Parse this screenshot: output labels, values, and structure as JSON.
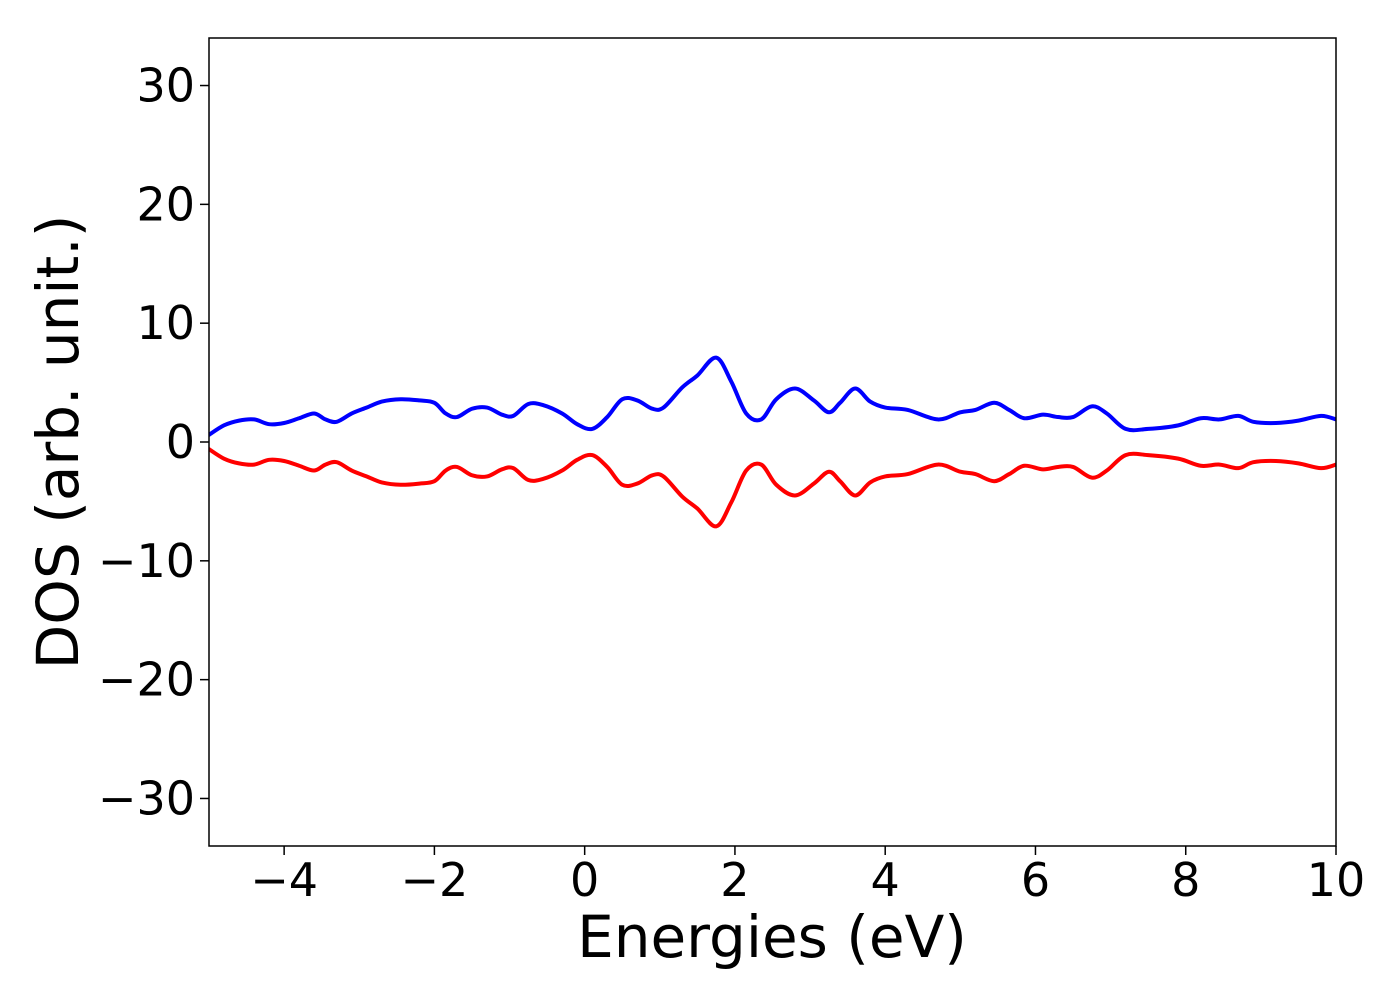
{
  "chart_data": {
    "type": "line",
    "title": "",
    "xlabel": "Energies (eV)",
    "ylabel": "DOS (arb. unit.)",
    "xlim": [
      -5,
      10
    ],
    "ylim": [
      -34,
      34
    ],
    "x_ticks": [
      -4,
      -2,
      0,
      2,
      4,
      6,
      8,
      10
    ],
    "y_ticks": [
      -30,
      -20,
      -10,
      0,
      10,
      20,
      30
    ],
    "x_tick_labels": [
      "−4",
      "−2",
      "0",
      "2",
      "4",
      "6",
      "8",
      "10"
    ],
    "y_tick_labels": [
      "−30",
      "−20",
      "−10",
      "0",
      "10",
      "20",
      "30"
    ],
    "grid": false,
    "series": [
      {
        "color": "#0000ff",
        "points": [
          [
            -5.0,
            0.6
          ],
          [
            -4.8,
            1.4
          ],
          [
            -4.6,
            1.8
          ],
          [
            -4.4,
            1.9
          ],
          [
            -4.2,
            1.5
          ],
          [
            -4.0,
            1.6
          ],
          [
            -3.8,
            2.0
          ],
          [
            -3.6,
            2.4
          ],
          [
            -3.45,
            1.9
          ],
          [
            -3.3,
            1.7
          ],
          [
            -3.1,
            2.4
          ],
          [
            -2.9,
            2.9
          ],
          [
            -2.7,
            3.4
          ],
          [
            -2.45,
            3.6
          ],
          [
            -2.2,
            3.5
          ],
          [
            -2.0,
            3.3
          ],
          [
            -1.85,
            2.4
          ],
          [
            -1.7,
            2.1
          ],
          [
            -1.5,
            2.8
          ],
          [
            -1.3,
            2.9
          ],
          [
            -1.1,
            2.3
          ],
          [
            -0.95,
            2.2
          ],
          [
            -0.75,
            3.2
          ],
          [
            -0.55,
            3.1
          ],
          [
            -0.3,
            2.4
          ],
          [
            -0.1,
            1.5
          ],
          [
            0.1,
            1.1
          ],
          [
            0.3,
            2.1
          ],
          [
            0.5,
            3.6
          ],
          [
            0.7,
            3.5
          ],
          [
            0.9,
            2.8
          ],
          [
            1.05,
            2.9
          ],
          [
            1.3,
            4.6
          ],
          [
            1.5,
            5.6
          ],
          [
            1.75,
            7.1
          ],
          [
            1.95,
            5.1
          ],
          [
            2.15,
            2.4
          ],
          [
            2.35,
            1.9
          ],
          [
            2.55,
            3.6
          ],
          [
            2.8,
            4.5
          ],
          [
            3.05,
            3.5
          ],
          [
            3.25,
            2.5
          ],
          [
            3.4,
            3.3
          ],
          [
            3.6,
            4.5
          ],
          [
            3.8,
            3.4
          ],
          [
            4.0,
            2.9
          ],
          [
            4.3,
            2.7
          ],
          [
            4.7,
            1.9
          ],
          [
            5.0,
            2.5
          ],
          [
            5.2,
            2.7
          ],
          [
            5.45,
            3.3
          ],
          [
            5.65,
            2.7
          ],
          [
            5.85,
            2.0
          ],
          [
            6.1,
            2.3
          ],
          [
            6.3,
            2.1
          ],
          [
            6.5,
            2.1
          ],
          [
            6.75,
            3.0
          ],
          [
            6.95,
            2.4
          ],
          [
            7.2,
            1.1
          ],
          [
            7.5,
            1.1
          ],
          [
            7.9,
            1.4
          ],
          [
            8.2,
            2.0
          ],
          [
            8.45,
            1.9
          ],
          [
            8.7,
            2.2
          ],
          [
            8.9,
            1.7
          ],
          [
            9.2,
            1.6
          ],
          [
            9.5,
            1.8
          ],
          [
            9.8,
            2.2
          ],
          [
            10.0,
            1.9
          ]
        ]
      },
      {
        "color": "#ff0000",
        "points": [
          [
            -5.0,
            -0.6
          ],
          [
            -4.8,
            -1.4
          ],
          [
            -4.6,
            -1.8
          ],
          [
            -4.4,
            -1.9
          ],
          [
            -4.2,
            -1.5
          ],
          [
            -4.0,
            -1.6
          ],
          [
            -3.8,
            -2.0
          ],
          [
            -3.6,
            -2.4
          ],
          [
            -3.45,
            -1.9
          ],
          [
            -3.3,
            -1.7
          ],
          [
            -3.1,
            -2.4
          ],
          [
            -2.9,
            -2.9
          ],
          [
            -2.7,
            -3.4
          ],
          [
            -2.45,
            -3.6
          ],
          [
            -2.2,
            -3.5
          ],
          [
            -2.0,
            -3.3
          ],
          [
            -1.85,
            -2.4
          ],
          [
            -1.7,
            -2.1
          ],
          [
            -1.5,
            -2.8
          ],
          [
            -1.3,
            -2.9
          ],
          [
            -1.1,
            -2.3
          ],
          [
            -0.95,
            -2.2
          ],
          [
            -0.75,
            -3.2
          ],
          [
            -0.55,
            -3.1
          ],
          [
            -0.3,
            -2.4
          ],
          [
            -0.1,
            -1.5
          ],
          [
            0.1,
            -1.1
          ],
          [
            0.3,
            -2.1
          ],
          [
            0.5,
            -3.6
          ],
          [
            0.7,
            -3.5
          ],
          [
            0.9,
            -2.8
          ],
          [
            1.05,
            -2.9
          ],
          [
            1.3,
            -4.6
          ],
          [
            1.5,
            -5.6
          ],
          [
            1.75,
            -7.1
          ],
          [
            1.95,
            -5.1
          ],
          [
            2.15,
            -2.4
          ],
          [
            2.35,
            -1.9
          ],
          [
            2.55,
            -3.6
          ],
          [
            2.8,
            -4.5
          ],
          [
            3.05,
            -3.5
          ],
          [
            3.25,
            -2.5
          ],
          [
            3.4,
            -3.3
          ],
          [
            3.6,
            -4.5
          ],
          [
            3.8,
            -3.4
          ],
          [
            4.0,
            -2.9
          ],
          [
            4.3,
            -2.7
          ],
          [
            4.7,
            -1.9
          ],
          [
            5.0,
            -2.5
          ],
          [
            5.2,
            -2.7
          ],
          [
            5.45,
            -3.3
          ],
          [
            5.65,
            -2.7
          ],
          [
            5.85,
            -2.0
          ],
          [
            6.1,
            -2.3
          ],
          [
            6.3,
            -2.1
          ],
          [
            6.5,
            -2.1
          ],
          [
            6.75,
            -3.0
          ],
          [
            6.95,
            -2.4
          ],
          [
            7.2,
            -1.1
          ],
          [
            7.5,
            -1.1
          ],
          [
            7.9,
            -1.4
          ],
          [
            8.2,
            -2.0
          ],
          [
            8.45,
            -1.9
          ],
          [
            8.7,
            -2.2
          ],
          [
            8.9,
            -1.7
          ],
          [
            9.2,
            -1.6
          ],
          [
            9.5,
            -1.8
          ],
          [
            9.8,
            -2.2
          ],
          [
            10.0,
            -1.9
          ]
        ]
      }
    ]
  }
}
